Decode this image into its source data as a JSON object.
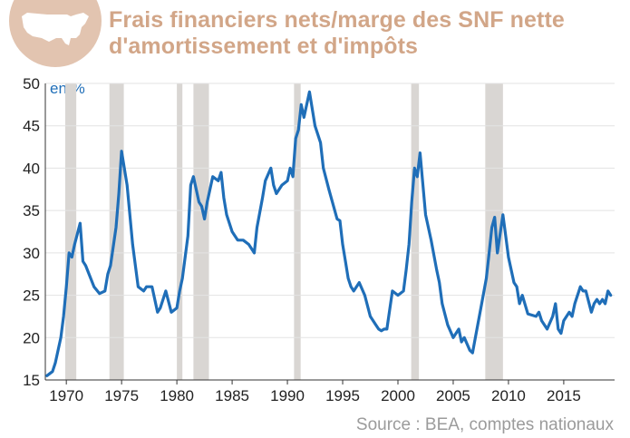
{
  "header": {
    "title": "Frais financiers nets/marge des SNF nette d'amortissement et d'impôts",
    "badge_icon": "usa-map-icon"
  },
  "colors": {
    "line": "#1f6eb8",
    "recession": "#d9d6d3",
    "title": "#d2a688",
    "badge": "#e2c4b0"
  },
  "chart_data": {
    "type": "line",
    "title": "Frais financiers nets/marge des SNF nette d'amortissement et d'impôts",
    "ylabel": "en %",
    "xlabel": "",
    "ylim": [
      15,
      50
    ],
    "xlim": [
      1968.1,
      2019.6
    ],
    "y_ticks": [
      15,
      20,
      25,
      30,
      35,
      40,
      45,
      50
    ],
    "x_ticks": [
      1970,
      1975,
      1980,
      1985,
      1990,
      1995,
      2000,
      2005,
      2010,
      2015
    ],
    "grid": true,
    "recessions": [
      [
        1969.9,
        1970.9
      ],
      [
        1973.9,
        1975.2
      ],
      [
        1980.0,
        1980.5
      ],
      [
        1981.5,
        1982.9
      ],
      [
        1990.6,
        1991.2
      ],
      [
        2001.2,
        2001.9
      ],
      [
        2007.9,
        2009.5
      ]
    ],
    "source": "Source : BEA, comptes nationaux",
    "series": [
      {
        "x": [
          1968.25,
          1968.75,
          1969.0,
          1969.5,
          1969.75,
          1970.0,
          1970.25,
          1970.5,
          1970.75,
          1971.25,
          1971.5,
          1971.75,
          1972.5,
          1973.0,
          1973.5,
          1973.75,
          1974.0,
          1974.5,
          1974.75,
          1975.0,
          1975.5,
          1976.0,
          1976.5,
          1977.0,
          1977.25,
          1977.75,
          1978.25,
          1978.5,
          1979.0,
          1979.5,
          1980.0,
          1980.25,
          1980.5,
          1981.0,
          1981.25,
          1981.5,
          1982.0,
          1982.25,
          1982.5,
          1982.75,
          1983.25,
          1983.75,
          1984.0,
          1984.25,
          1984.5,
          1985.0,
          1985.5,
          1986.0,
          1986.5,
          1987.0,
          1987.25,
          1987.75,
          1988.0,
          1988.5,
          1988.75,
          1989.0,
          1989.5,
          1990.0,
          1990.25,
          1990.5,
          1990.75,
          1991.0,
          1991.25,
          1991.5,
          1992.0,
          1992.5,
          1993.0,
          1993.25,
          1993.75,
          1994.5,
          1994.75,
          1995.0,
          1995.25,
          1995.5,
          1995.75,
          1996.0,
          1996.5,
          1997.0,
          1997.5,
          1998.0,
          1998.25,
          1998.5,
          1998.75,
          1999.0,
          1999.5,
          2000.0,
          2000.5,
          2000.75,
          2001.0,
          2001.25,
          2001.5,
          2001.75,
          2002.0,
          2002.5,
          2003.0,
          2003.5,
          2003.75,
          2004.0,
          2004.5,
          2005.0,
          2005.5,
          2005.75,
          2006.0,
          2006.5,
          2006.75,
          2007.0,
          2007.5,
          2008.0,
          2008.25,
          2008.5,
          2008.75,
          2009.0,
          2009.5,
          2009.75,
          2010.0,
          2010.5,
          2010.75,
          2011.0,
          2011.25,
          2011.75,
          2012.5,
          2012.75,
          2013.0,
          2013.5,
          2014.0,
          2014.25,
          2014.5,
          2014.75,
          2015.0,
          2015.5,
          2015.75,
          2016.0,
          2016.5,
          2016.75,
          2017.0,
          2017.5,
          2017.75,
          2018.0,
          2018.25,
          2018.5,
          2018.75,
          2019.0,
          2019.25
        ],
        "values": [
          15.5,
          16.0,
          17.0,
          20.0,
          22.5,
          26.0,
          30.0,
          29.5,
          31.0,
          33.5,
          29.0,
          28.5,
          26.0,
          25.2,
          25.5,
          27.5,
          28.5,
          33.0,
          37.0,
          42.0,
          38.0,
          31.0,
          26.0,
          25.5,
          26.0,
          26.0,
          23.0,
          23.5,
          25.5,
          23.0,
          23.5,
          25.5,
          27.0,
          32.0,
          38.0,
          39.0,
          36.0,
          35.5,
          34.0,
          36.0,
          39.0,
          38.5,
          39.5,
          36.5,
          34.5,
          32.5,
          31.5,
          31.5,
          31.0,
          30.0,
          33.0,
          36.5,
          38.5,
          40.0,
          38.0,
          37.0,
          38.0,
          38.5,
          40.0,
          39.0,
          43.5,
          44.5,
          47.5,
          46.0,
          49.0,
          45.0,
          43.0,
          40.0,
          37.5,
          34.0,
          33.8,
          31.0,
          29.0,
          27.0,
          26.0,
          25.5,
          26.5,
          25.0,
          22.5,
          21.5,
          21.0,
          20.8,
          21.0,
          21.0,
          25.5,
          25.0,
          25.5,
          28.0,
          31.0,
          36.0,
          40.0,
          39.0,
          41.8,
          34.5,
          31.5,
          28.0,
          26.5,
          24.0,
          21.5,
          20.0,
          21.0,
          19.5,
          20.0,
          18.5,
          18.2,
          20.0,
          23.5,
          27.0,
          30.0,
          33.0,
          34.2,
          30.0,
          34.5,
          32.0,
          29.5,
          26.5,
          26.0,
          24.0,
          25.0,
          22.8,
          22.5,
          23.0,
          22.0,
          21.0,
          22.5,
          24.0,
          21.0,
          20.5,
          22.0,
          23.0,
          22.5,
          24.0,
          26.0,
          25.5,
          25.5,
          23.0,
          24.0,
          24.5,
          24.0,
          24.5,
          24.0,
          25.5,
          25.0
        ]
      }
    ]
  }
}
